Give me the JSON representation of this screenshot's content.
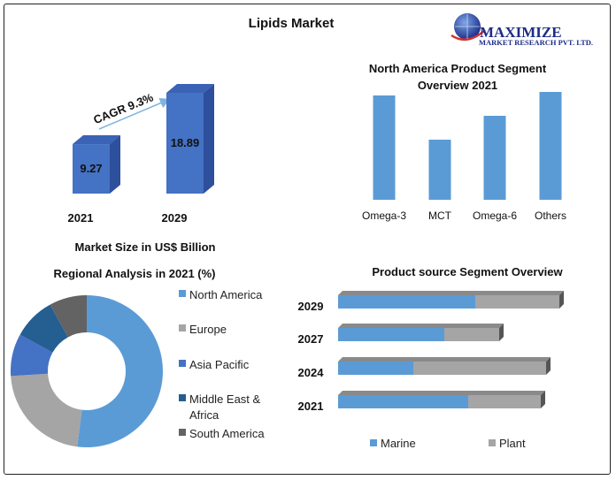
{
  "page": {
    "title": "Lipids Market",
    "logo": {
      "name": "MAXIMIZE",
      "tagline": "MARKET RESEARCH PVT. LTD."
    }
  },
  "colors": {
    "bar_3d_front": "#4472c4",
    "bar_3d_side": "#2e4f9b",
    "bar_3d_top": "#3a62b5",
    "blue": "#5b9bd5",
    "gray": "#a5a5a5",
    "donut": [
      "#5b9bd5",
      "#a5a5a5",
      "#4472c4",
      "#255e91",
      "#636363"
    ]
  },
  "chart_data": [
    {
      "id": "market-size",
      "type": "bar",
      "title": "Market Size in US$ Billion",
      "categories": [
        "2021",
        "2029"
      ],
      "values": [
        9.27,
        18.89
      ],
      "value_labels": [
        "9.27",
        "18.89"
      ],
      "annotation": "CAGR 9.3%",
      "style": "3d"
    },
    {
      "id": "north-america-product",
      "type": "bar",
      "title_lines": [
        "North America Product Segment",
        "Overview 2021"
      ],
      "categories": [
        "Omega-3",
        "MCT",
        "Omega-6",
        "Others"
      ],
      "values": [
        118,
        68,
        95,
        122
      ],
      "ylim": [
        0,
        125
      ]
    },
    {
      "id": "regional",
      "type": "pie",
      "donut": true,
      "title": "Regional Analysis in 2021 (%)",
      "labels": [
        "North America",
        "Europe",
        "Asia Pacific",
        "Middle East & Africa",
        "South America"
      ],
      "legend_lines": [
        [
          "North America"
        ],
        [
          "Europe"
        ],
        [
          "Asia Pacific"
        ],
        [
          "Middle East &",
          "Africa"
        ],
        [
          "South America"
        ]
      ],
      "values": [
        52,
        22,
        9,
        9,
        8
      ]
    },
    {
      "id": "product-source",
      "type": "bar",
      "orientation": "horizontal",
      "stacked": true,
      "title": "Product source Segment Overview",
      "categories": [
        "2029",
        "2027",
        "2024",
        "2021"
      ],
      "series": [
        {
          "name": "Marine",
          "values": [
            155,
            120,
            85,
            147
          ]
        },
        {
          "name": "Plant",
          "values": [
            95,
            62,
            150,
            82
          ]
        }
      ],
      "xlim": [
        0,
        250
      ],
      "style": "3d"
    }
  ]
}
